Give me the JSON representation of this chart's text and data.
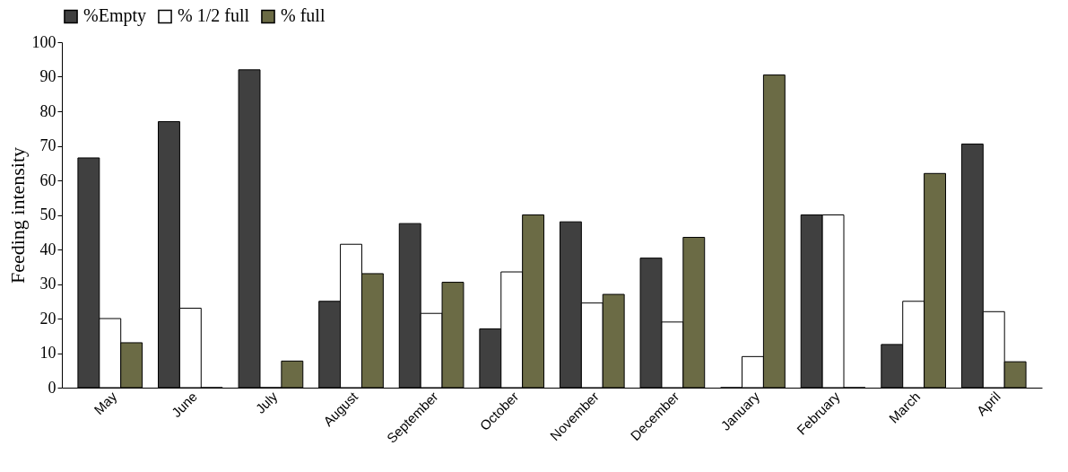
{
  "chart_data": {
    "type": "bar",
    "ylabel": "Feeding intensity",
    "categories": [
      "May",
      "June",
      "July",
      "August",
      "September",
      "October",
      "November",
      "December",
      "January",
      "February",
      "March",
      "April"
    ],
    "series": [
      {
        "name": "%Empty",
        "color": "#404040",
        "values": [
          66.5,
          77,
          92,
          25,
          47.5,
          17,
          48,
          37.5,
          0,
          50,
          12.5,
          70.5
        ]
      },
      {
        "name": "% 1/2 full",
        "color": "#ffffff",
        "values": [
          20,
          23,
          0,
          41.5,
          21.5,
          33.5,
          24.5,
          19,
          9,
          50,
          25,
          22
        ]
      },
      {
        "name": "% full",
        "color": "#6b6b45",
        "values": [
          13,
          0,
          7.7,
          33,
          30.5,
          50,
          27,
          43.5,
          90.5,
          0,
          62,
          7.5
        ]
      }
    ],
    "ylim": [
      0,
      100
    ],
    "yticks": [
      0,
      10,
      20,
      30,
      40,
      50,
      60,
      70,
      80,
      90,
      100
    ],
    "grid": false,
    "legend": "top"
  }
}
